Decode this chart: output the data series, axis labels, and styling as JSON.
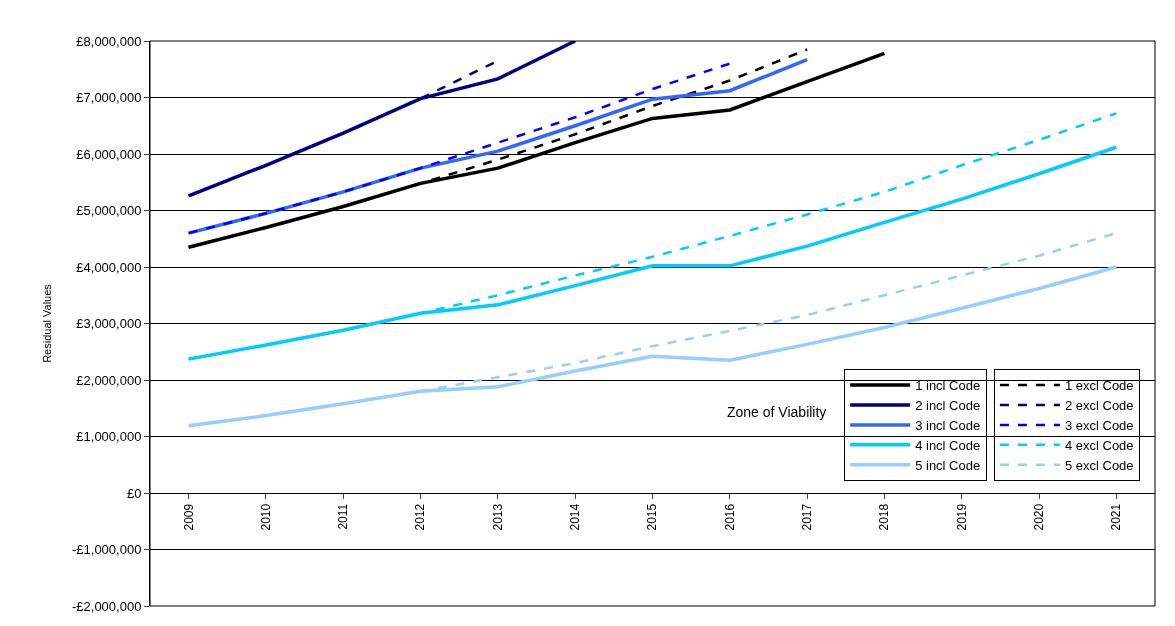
{
  "chart_data": {
    "type": "line",
    "ylabel": "Residual Values",
    "categories": [
      "2009",
      "2010",
      "2011",
      "2012",
      "2013",
      "2014",
      "2015",
      "2016",
      "2017",
      "2018",
      "2019",
      "2020",
      "2021"
    ],
    "series": [
      {
        "name": "1 incl Code",
        "color": "#000000",
        "line_style": "solid",
        "values": [
          4350000,
          4700000,
          5070000,
          5480000,
          5750000,
          6200000,
          6630000,
          6780000,
          7280000,
          7780000,
          null,
          null,
          null
        ]
      },
      {
        "name": "1 excl Code",
        "color": "#000000",
        "line_style": "dashed",
        "values": [
          4350000,
          4700000,
          5070000,
          5480000,
          5900000,
          6350000,
          6850000,
          7300000,
          7850000,
          null,
          null,
          null,
          null
        ]
      },
      {
        "name": "2 incl Code",
        "color": "#000080",
        "line_style": "solid",
        "values": [
          5260000,
          5800000,
          6370000,
          6980000,
          7330000,
          8000000,
          null,
          null,
          null,
          null,
          null,
          null,
          null
        ]
      },
      {
        "name": "2 excl Code",
        "color": "#000080",
        "line_style": "dashed",
        "values": [
          5260000,
          5800000,
          6370000,
          6980000,
          7650000,
          null,
          null,
          null,
          null,
          null,
          null,
          null,
          null
        ]
      },
      {
        "name": "3 incl Code",
        "color": "#3366ff",
        "line_style": "solid",
        "values": [
          4600000,
          4950000,
          5330000,
          5750000,
          6050000,
          6500000,
          6970000,
          7120000,
          7670000,
          null,
          null,
          null,
          null
        ]
      },
      {
        "name": "3 excl Code",
        "color": "#0000ff",
        "line_style": "dashed",
        "values": [
          4600000,
          4950000,
          5330000,
          5750000,
          6200000,
          6650000,
          7150000,
          7600000,
          null,
          null,
          null,
          null,
          null
        ]
      },
      {
        "name": "4 incl Code",
        "color": "#00ccff",
        "line_style": "solid",
        "values": [
          2370000,
          2620000,
          2880000,
          3180000,
          3330000,
          3670000,
          4020000,
          4020000,
          4370000,
          4790000,
          5200000,
          5650000,
          6120000
        ]
      },
      {
        "name": "4 excl Code",
        "color": "#00ccff",
        "line_style": "dashed",
        "values": [
          2370000,
          2620000,
          2880000,
          3180000,
          3500000,
          3850000,
          4180000,
          4550000,
          4930000,
          5330000,
          5800000,
          6250000,
          6720000
        ]
      },
      {
        "name": "5 incl Code",
        "color": "#99ccff",
        "line_style": "solid",
        "values": [
          1190000,
          1370000,
          1580000,
          1800000,
          1880000,
          2160000,
          2420000,
          2350000,
          2630000,
          2930000,
          3270000,
          3620000,
          4000000
        ]
      },
      {
        "name": "5 excl Code",
        "color": "#99ccff",
        "line_style": "dashed",
        "values": [
          1190000,
          1370000,
          1580000,
          1800000,
          2050000,
          2300000,
          2600000,
          2870000,
          3150000,
          3500000,
          3850000,
          4200000,
          4600000
        ]
      }
    ],
    "ylim": [
      -2000000,
      8000000
    ],
    "yticks": [
      {
        "value": -2000000,
        "label": "-£2,000,000"
      },
      {
        "value": -1000000,
        "label": "-£1,000,000"
      },
      {
        "value": 0,
        "label": "£0"
      },
      {
        "value": 1000000,
        "label": "£1,000,000"
      },
      {
        "value": 2000000,
        "label": "£2,000,000"
      },
      {
        "value": 3000000,
        "label": "£3,000,000"
      },
      {
        "value": 4000000,
        "label": "£4,000,000"
      },
      {
        "value": 5000000,
        "label": "£5,000,000"
      },
      {
        "value": 6000000,
        "label": "£6,000,000"
      },
      {
        "value": 7000000,
        "label": "£7,000,000"
      },
      {
        "value": 8000000,
        "label": "£8,000,000"
      }
    ],
    "grid": "y",
    "legend": "bottom right",
    "marker": "none",
    "annotations": [
      "Zone of Viability"
    ]
  }
}
